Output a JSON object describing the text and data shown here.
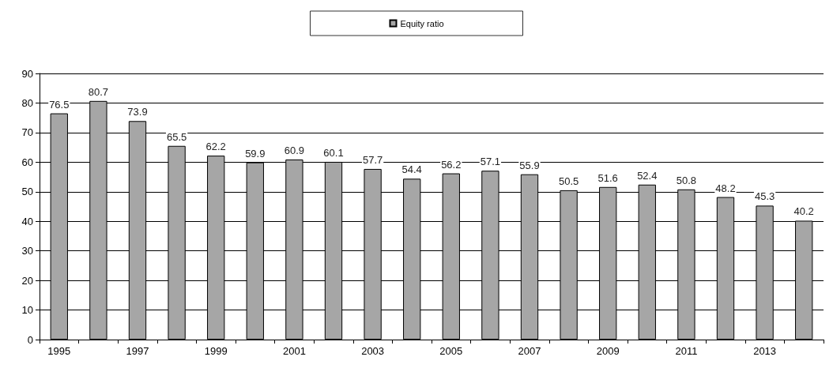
{
  "chart_data": {
    "type": "bar",
    "categories": [
      "1995",
      null,
      "1997",
      null,
      "1999",
      null,
      "2001",
      null,
      "2003",
      null,
      "2005",
      null,
      "2007",
      null,
      "2009",
      null,
      "2011",
      null,
      "2013",
      null
    ],
    "series": [
      {
        "name": "Equity ratio",
        "color": "#a6a6a6",
        "values": [
          76.5,
          80.7,
          73.9,
          65.5,
          62.2,
          59.9,
          60.9,
          60.1,
          57.7,
          54.4,
          56.2,
          57.1,
          55.9,
          50.5,
          51.6,
          52.4,
          50.8,
          48.2,
          45.3,
          40.2
        ]
      }
    ],
    "ylim": [
      0,
      90
    ],
    "yticks": [
      0,
      10,
      20,
      30,
      40,
      50,
      60,
      70,
      80,
      90
    ],
    "grid": "y",
    "legend": "top",
    "data_labels": true
  }
}
